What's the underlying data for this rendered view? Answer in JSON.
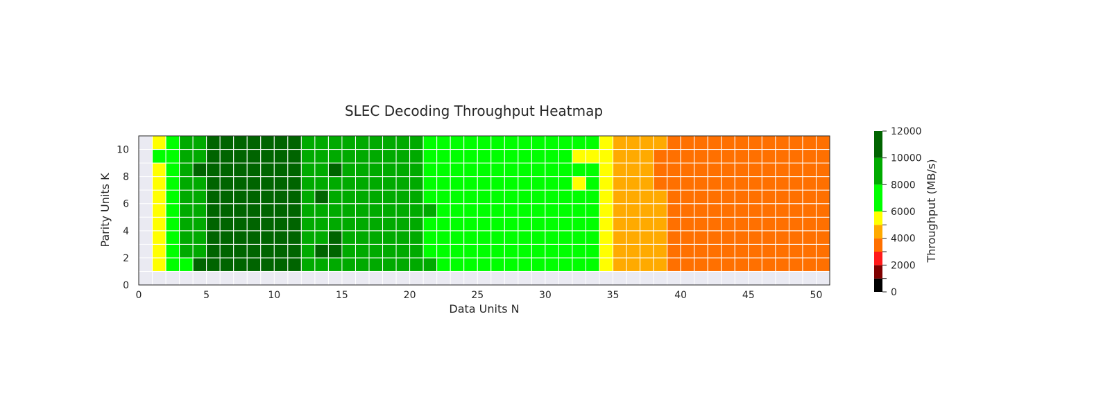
{
  "chart_data": {
    "type": "heatmap",
    "title": "SLEC Decoding Throughput Heatmap",
    "xlabel": "Data Units N",
    "ylabel": "Parity Units K",
    "xlim": [
      0,
      51
    ],
    "ylim": [
      0,
      11
    ],
    "xticks": [
      0,
      5,
      10,
      15,
      20,
      25,
      30,
      35,
      40,
      45,
      50
    ],
    "yticks": [
      0,
      2,
      4,
      6,
      8,
      10
    ],
    "colorbar": {
      "label": "Throughput (MB/s)",
      "ticks": [
        0,
        2000,
        4000,
        6000,
        8000,
        10000,
        12000
      ],
      "bins": [
        {
          "from": 0,
          "to": 1000,
          "color": "#000000"
        },
        {
          "from": 1000,
          "to": 2000,
          "color": "#7f0000"
        },
        {
          "from": 2000,
          "to": 3000,
          "color": "#ff1a1a"
        },
        {
          "from": 3000,
          "to": 4000,
          "color": "#ff7000"
        },
        {
          "from": 4000,
          "to": 5000,
          "color": "#ffaa00"
        },
        {
          "from": 5000,
          "to": 6000,
          "color": "#ffff00"
        },
        {
          "from": 6000,
          "to": 8000,
          "color": "#00ff00"
        },
        {
          "from": 8000,
          "to": 10000,
          "color": "#00aa00"
        },
        {
          "from": 10000,
          "to": 12000,
          "color": "#006400"
        }
      ]
    },
    "missing_color": "#eaeaf2",
    "n_values": [
      1,
      2,
      3,
      4,
      5,
      6,
      7,
      8,
      9,
      10,
      11,
      12,
      13,
      14,
      15,
      16,
      17,
      18,
      19,
      20,
      21,
      22,
      23,
      24,
      25,
      26,
      27,
      28,
      29,
      30,
      31,
      32,
      33,
      34,
      35,
      36,
      37,
      38,
      39,
      40,
      41,
      42,
      43,
      44,
      45,
      46,
      47,
      48,
      49,
      50
    ],
    "k_values": [
      1,
      2,
      3,
      4,
      5,
      6,
      7,
      8,
      9,
      10
    ],
    "z_rows": [
      [
        5500,
        7000,
        7000,
        11000,
        11000,
        11000,
        11000,
        11000,
        11000,
        11000,
        11000,
        9000,
        9000,
        9000,
        9000,
        9000,
        9000,
        9000,
        9000,
        9000,
        9000,
        7000,
        7000,
        7000,
        7000,
        7000,
        7000,
        7000,
        7000,
        7000,
        7000,
        7000,
        7000,
        5500,
        4500,
        4500,
        4500,
        4500,
        3500,
        3500,
        3500,
        3500,
        3500,
        3500,
        3500,
        3500,
        3500,
        3500,
        3500,
        3500
      ],
      [
        5500,
        7000,
        9000,
        9000,
        11000,
        11000,
        11000,
        11000,
        11000,
        11000,
        11000,
        9000,
        11000,
        11000,
        9000,
        9000,
        9000,
        9000,
        9000,
        9000,
        7000,
        7000,
        7000,
        7000,
        7000,
        7000,
        7000,
        7000,
        7000,
        7000,
        7000,
        7000,
        7000,
        5500,
        4500,
        4500,
        4500,
        4500,
        3500,
        3500,
        3500,
        3500,
        3500,
        3500,
        3500,
        3500,
        3500,
        3500,
        3500,
        3500
      ],
      [
        5500,
        7000,
        9000,
        9000,
        11000,
        11000,
        11000,
        11000,
        11000,
        11000,
        11000,
        9000,
        9000,
        11000,
        9000,
        9000,
        9000,
        9000,
        9000,
        9000,
        7000,
        7000,
        7000,
        7000,
        7000,
        7000,
        7000,
        7000,
        7000,
        7000,
        7000,
        7000,
        7000,
        5500,
        4500,
        4500,
        4500,
        4500,
        3500,
        3500,
        3500,
        3500,
        3500,
        3500,
        3500,
        3500,
        3500,
        3500,
        3500,
        3500
      ],
      [
        5500,
        7000,
        9000,
        9000,
        11000,
        11000,
        11000,
        11000,
        11000,
        11000,
        11000,
        9000,
        9000,
        9000,
        9000,
        9000,
        9000,
        9000,
        9000,
        9000,
        7000,
        7000,
        7000,
        7000,
        7000,
        7000,
        7000,
        7000,
        7000,
        7000,
        7000,
        7000,
        7000,
        5500,
        4500,
        4500,
        4500,
        4500,
        3500,
        3500,
        3500,
        3500,
        3500,
        3500,
        3500,
        3500,
        3500,
        3500,
        3500,
        3500
      ],
      [
        5500,
        7000,
        9000,
        9000,
        11000,
        11000,
        11000,
        11000,
        11000,
        11000,
        11000,
        9000,
        9000,
        9000,
        9000,
        9000,
        9000,
        9000,
        9000,
        9000,
        9000,
        7000,
        7000,
        7000,
        7000,
        7000,
        7000,
        7000,
        7000,
        7000,
        7000,
        7000,
        7000,
        5500,
        4500,
        4500,
        4500,
        4500,
        3500,
        3500,
        3500,
        3500,
        3500,
        3500,
        3500,
        3500,
        3500,
        3500,
        3500,
        3500
      ],
      [
        5500,
        7000,
        9000,
        9000,
        11000,
        11000,
        11000,
        11000,
        11000,
        11000,
        11000,
        9000,
        11000,
        9000,
        9000,
        9000,
        9000,
        9000,
        9000,
        9000,
        7000,
        7000,
        7000,
        7000,
        7000,
        7000,
        7000,
        7000,
        7000,
        7000,
        7000,
        7000,
        7000,
        5500,
        4500,
        4500,
        4500,
        4500,
        3500,
        3500,
        3500,
        3500,
        3500,
        3500,
        3500,
        3500,
        3500,
        3500,
        3500,
        3500
      ],
      [
        5500,
        7000,
        9000,
        9000,
        11000,
        11000,
        11000,
        11000,
        11000,
        11000,
        11000,
        9000,
        9000,
        9000,
        9000,
        9000,
        9000,
        9000,
        9000,
        9000,
        7000,
        7000,
        7000,
        7000,
        7000,
        7000,
        7000,
        7000,
        7000,
        7000,
        7000,
        5500,
        7000,
        5500,
        4500,
        4500,
        4500,
        3500,
        3500,
        3500,
        3500,
        3500,
        3500,
        3500,
        3500,
        3500,
        3500,
        3500,
        3500,
        3500
      ],
      [
        5500,
        7000,
        9000,
        11000,
        11000,
        11000,
        11000,
        11000,
        11000,
        11000,
        11000,
        9000,
        9000,
        11000,
        9000,
        9000,
        9000,
        9000,
        9000,
        9000,
        7000,
        7000,
        7000,
        7000,
        7000,
        7000,
        7000,
        7000,
        7000,
        7000,
        7000,
        7000,
        7000,
        5500,
        4500,
        4500,
        4500,
        3500,
        3500,
        3500,
        3500,
        3500,
        3500,
        3500,
        3500,
        3500,
        3500,
        3500,
        3500,
        3500
      ],
      [
        7000,
        7000,
        9000,
        9000,
        11000,
        11000,
        11000,
        11000,
        11000,
        11000,
        11000,
        9000,
        9000,
        9000,
        9000,
        9000,
        9000,
        9000,
        9000,
        9000,
        7000,
        7000,
        7000,
        7000,
        7000,
        7000,
        7000,
        7000,
        7000,
        7000,
        7000,
        5500,
        5500,
        5500,
        4500,
        4500,
        4500,
        3500,
        3500,
        3500,
        3500,
        3500,
        3500,
        3500,
        3500,
        3500,
        3500,
        3500,
        3500,
        3500
      ],
      [
        5500,
        7000,
        9000,
        9000,
        11000,
        11000,
        11000,
        11000,
        11000,
        11000,
        11000,
        9000,
        9000,
        9000,
        9000,
        9000,
        9000,
        9000,
        9000,
        9000,
        7000,
        7000,
        7000,
        7000,
        7000,
        7000,
        7000,
        7000,
        7000,
        7000,
        7000,
        7000,
        7000,
        5500,
        4500,
        4500,
        4500,
        4500,
        3500,
        3500,
        3500,
        3500,
        3500,
        3500,
        3500,
        3500,
        3500,
        3500,
        3500,
        3500
      ]
    ]
  }
}
